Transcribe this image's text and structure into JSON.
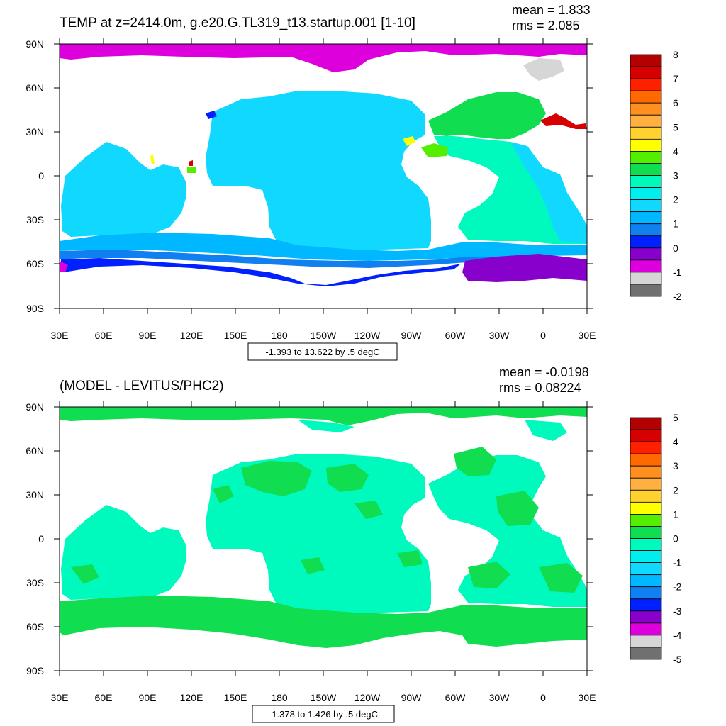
{
  "longitude_labels": [
    "30E",
    "60E",
    "90E",
    "120E",
    "150E",
    "180",
    "150W",
    "120W",
    "90W",
    "60W",
    "30W",
    "0",
    "30E"
  ],
  "latitude_labels": [
    "90N",
    "60N",
    "30N",
    "0",
    "30S",
    "60S",
    "90S"
  ],
  "panels": [
    {
      "title": "TEMP at z=2414.0m, g.e20.G.TL319_t13.startup.001 [1-10]",
      "mean": "mean = 1.833",
      "rms": "rms = 2.085",
      "range": "-1.393 to 13.622 by .5 degC",
      "colorbar": {
        "labels": [
          "8",
          "7",
          "6",
          "5",
          "4",
          "3",
          "2",
          "1",
          "0",
          "-1",
          "-2"
        ],
        "colors": [
          "#b30000",
          "#d70000",
          "#ff2000",
          "#ff6a00",
          "#ff9020",
          "#ffb040",
          "#ffd230",
          "#ffff00",
          "#55ee00",
          "#10dd50",
          "#00fabe",
          "#00eeee",
          "#10d8ff",
          "#00b8ff",
          "#1080f0",
          "#0020ff",
          "#8800cc",
          "#dd00dd",
          "#d6d6d6",
          "#707070"
        ]
      }
    },
    {
      "title": "(MODEL - LEVITUS/PHC2)",
      "mean": "mean = -0.0198",
      "rms": "rms = 0.08224",
      "range": "-1.378 to 1.426 by .5 degC",
      "colorbar": {
        "labels": [
          "5",
          "4",
          "3",
          "2",
          "1",
          "0",
          "-1",
          "-2",
          "-3",
          "-4",
          "-5"
        ],
        "colors": [
          "#b30000",
          "#d70000",
          "#ff2000",
          "#ff6a00",
          "#ff9020",
          "#ffb040",
          "#ffd230",
          "#ffff00",
          "#55ee00",
          "#10dd50",
          "#00fabe",
          "#00eeee",
          "#10d8ff",
          "#00b8ff",
          "#1080f0",
          "#0020ff",
          "#8800cc",
          "#dd00dd",
          "#d6d6d6",
          "#707070"
        ]
      }
    }
  ]
}
